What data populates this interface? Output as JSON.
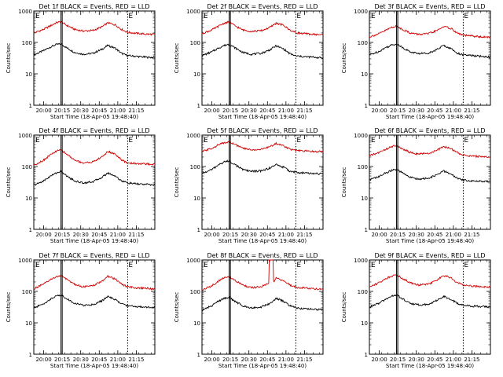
{
  "figure": {
    "background": "#ffffff",
    "axis_color": "#000000",
    "events_color": "#000000",
    "lld_color": "#d00000"
  },
  "chart_data": [
    {
      "type": "line",
      "title": "Det 1f BLACK = Events, RED = LLD",
      "ylabel": "Counts/sec",
      "xlabel": "Start Time (18-Apr-05 19:48:40)",
      "yscale": "log",
      "ylim": [
        1,
        1000
      ],
      "ytick_labels": [
        "1",
        "10",
        "100",
        "1000"
      ],
      "xlim_minutes": [
        -8,
        90
      ],
      "xtick_labels": [
        "20:00",
        "20:15",
        "20:30",
        "20:45",
        "21:00",
        "21:15"
      ],
      "xtick_minutes": [
        0,
        15,
        30,
        45,
        60,
        75
      ],
      "solid_markers_minutes": [
        14,
        15
      ],
      "dotted_markers_minutes": [
        68
      ],
      "marker_labels": [
        "E",
        "E"
      ],
      "series": [
        {
          "name": "Events",
          "x": [
            -8,
            0,
            5,
            10,
            14,
            18,
            25,
            32,
            40,
            47,
            52,
            58,
            63,
            68,
            75,
            82,
            90
          ],
          "values": [
            40,
            55,
            70,
            85,
            90,
            70,
            48,
            42,
            45,
            60,
            80,
            65,
            45,
            38,
            36,
            34,
            33
          ]
        },
        {
          "name": "LLD",
          "x": [
            -8,
            0,
            5,
            10,
            14,
            18,
            25,
            32,
            40,
            47,
            52,
            58,
            63,
            68,
            75,
            82,
            90
          ],
          "values": [
            200,
            260,
            330,
            420,
            460,
            360,
            260,
            230,
            240,
            310,
            420,
            360,
            260,
            210,
            195,
            185,
            180
          ]
        }
      ]
    },
    {
      "type": "line",
      "title": "Det 2f BLACK = Events, RED = LLD",
      "ylabel": "Counts/sec",
      "xlabel": "Start Time (18-Apr-05 19:48:40)",
      "yscale": "log",
      "ylim": [
        1,
        1000
      ],
      "ytick_labels": [
        "1",
        "10",
        "100",
        "1000"
      ],
      "xlim_minutes": [
        -8,
        90
      ],
      "xtick_labels": [
        "20:00",
        "20:15",
        "20:30",
        "20:45",
        "21:00",
        "21:15"
      ],
      "xtick_minutes": [
        0,
        15,
        30,
        45,
        60,
        75
      ],
      "solid_markers_minutes": [
        14,
        15
      ],
      "dotted_markers_minutes": [
        68
      ],
      "marker_labels": [
        "E",
        "E"
      ],
      "series": [
        {
          "name": "Events",
          "x": [
            -8,
            0,
            5,
            10,
            14,
            18,
            25,
            32,
            40,
            47,
            52,
            58,
            63,
            68,
            75,
            82,
            90
          ],
          "values": [
            38,
            50,
            65,
            80,
            88,
            70,
            48,
            42,
            45,
            58,
            78,
            62,
            44,
            37,
            35,
            34,
            32
          ]
        },
        {
          "name": "LLD",
          "x": [
            -8,
            0,
            5,
            10,
            14,
            18,
            25,
            32,
            40,
            47,
            52,
            58,
            63,
            68,
            75,
            82,
            90
          ],
          "values": [
            190,
            250,
            320,
            410,
            450,
            350,
            250,
            225,
            235,
            300,
            410,
            350,
            250,
            205,
            190,
            180,
            175
          ]
        }
      ]
    },
    {
      "type": "line",
      "title": "Det 3f BLACK = Events, RED = LLD",
      "ylabel": "Counts/sec",
      "xlabel": "Start Time (18-Apr-05 19:48:40)",
      "yscale": "log",
      "ylim": [
        1,
        1000
      ],
      "ytick_labels": [
        "1",
        "10",
        "100",
        "1000"
      ],
      "xlim_minutes": [
        -8,
        90
      ],
      "xtick_labels": [
        "20:00",
        "20:15",
        "20:30",
        "20:45",
        "21:00",
        "21:15"
      ],
      "xtick_minutes": [
        0,
        15,
        30,
        45,
        60,
        75
      ],
      "solid_markers_minutes": [
        14,
        15
      ],
      "dotted_markers_minutes": [
        68
      ],
      "marker_labels": [
        "E",
        "E"
      ],
      "series": [
        {
          "name": "Events",
          "x": [
            -8,
            0,
            5,
            10,
            14,
            18,
            25,
            32,
            40,
            47,
            52,
            58,
            63,
            68,
            75,
            82,
            90
          ],
          "values": [
            40,
            52,
            68,
            82,
            90,
            72,
            50,
            44,
            46,
            60,
            80,
            64,
            46,
            40,
            38,
            36,
            34
          ]
        },
        {
          "name": "LLD",
          "x": [
            -8,
            0,
            5,
            10,
            14,
            18,
            25,
            32,
            40,
            47,
            52,
            58,
            63,
            68,
            75,
            82,
            90
          ],
          "values": [
            150,
            190,
            240,
            300,
            330,
            270,
            200,
            180,
            190,
            240,
            320,
            280,
            200,
            170,
            160,
            150,
            145
          ]
        }
      ]
    },
    {
      "type": "line",
      "title": "Det 4f BLACK = Events, RED = LLD",
      "ylabel": "Counts/sec",
      "xlabel": "Start Time (18-Apr-05 19:48:40)",
      "yscale": "log",
      "ylim": [
        1,
        1000
      ],
      "ytick_labels": [
        "1",
        "10",
        "100",
        "1000"
      ],
      "xlim_minutes": [
        -8,
        90
      ],
      "xtick_labels": [
        "20:00",
        "20:15",
        "20:30",
        "20:45",
        "21:00",
        "21:15"
      ],
      "xtick_minutes": [
        0,
        15,
        30,
        45,
        60,
        75
      ],
      "solid_markers_minutes": [
        14,
        15
      ],
      "dotted_markers_minutes": [
        68
      ],
      "marker_labels": [
        "E",
        "E"
      ],
      "series": [
        {
          "name": "Events",
          "x": [
            -8,
            0,
            5,
            10,
            14,
            18,
            25,
            32,
            40,
            47,
            52,
            58,
            63,
            68,
            75,
            82,
            90
          ],
          "values": [
            25,
            35,
            48,
            62,
            70,
            52,
            35,
            30,
            33,
            45,
            62,
            50,
            35,
            30,
            28,
            27,
            26
          ]
        },
        {
          "name": "LLD",
          "x": [
            -8,
            0,
            5,
            10,
            14,
            18,
            25,
            32,
            40,
            47,
            52,
            58,
            63,
            68,
            75,
            82,
            90
          ],
          "values": [
            110,
            160,
            230,
            300,
            340,
            260,
            160,
            130,
            140,
            200,
            300,
            250,
            160,
            130,
            125,
            120,
            118
          ]
        }
      ]
    },
    {
      "type": "line",
      "title": "Det 5f BLACK = Events, RED = LLD",
      "ylabel": "Counts/sec",
      "xlabel": "Start Time (18-Apr-05 19:48:40)",
      "yscale": "log",
      "ylim": [
        1,
        1000
      ],
      "ytick_labels": [
        "1",
        "10",
        "100",
        "1000"
      ],
      "xlim_minutes": [
        -8,
        90
      ],
      "xtick_labels": [
        "20:00",
        "20:15",
        "20:30",
        "20:45",
        "21:00",
        "21:15"
      ],
      "xtick_minutes": [
        0,
        15,
        30,
        45,
        60,
        75
      ],
      "solid_markers_minutes": [
        14,
        15
      ],
      "dotted_markers_minutes": [
        68
      ],
      "marker_labels": [
        "E",
        "E"
      ],
      "series": [
        {
          "name": "Events",
          "x": [
            -8,
            0,
            5,
            10,
            14,
            18,
            25,
            32,
            40,
            47,
            52,
            58,
            63,
            68,
            75,
            82,
            90
          ],
          "values": [
            60,
            80,
            110,
            140,
            150,
            120,
            80,
            70,
            72,
            90,
            115,
            95,
            72,
            65,
            62,
            60,
            58
          ]
        },
        {
          "name": "LLD",
          "x": [
            -8,
            0,
            5,
            10,
            14,
            18,
            25,
            32,
            40,
            47,
            52,
            58,
            63,
            68,
            75,
            82,
            90
          ],
          "values": [
            300,
            380,
            480,
            580,
            620,
            520,
            380,
            340,
            350,
            430,
            540,
            460,
            360,
            320,
            310,
            300,
            295
          ]
        }
      ]
    },
    {
      "type": "line",
      "title": "Det 6f BLACK = Events, RED = LLD",
      "ylabel": "Counts/sec",
      "xlabel": "Start Time (18-Apr-05 19:48:40)",
      "yscale": "log",
      "ylim": [
        1,
        1000
      ],
      "ytick_labels": [
        "1",
        "10",
        "100",
        "1000"
      ],
      "xlim_minutes": [
        -8,
        90
      ],
      "xtick_labels": [
        "20:00",
        "20:15",
        "20:30",
        "20:45",
        "21:00",
        "21:15"
      ],
      "xtick_minutes": [
        0,
        15,
        30,
        45,
        60,
        75
      ],
      "solid_markers_minutes": [
        14,
        15
      ],
      "dotted_markers_minutes": [
        68
      ],
      "marker_labels": [
        "E",
        "E"
      ],
      "series": [
        {
          "name": "Events",
          "x": [
            -8,
            0,
            5,
            10,
            14,
            18,
            25,
            32,
            40,
            47,
            52,
            58,
            63,
            68,
            75,
            82,
            90
          ],
          "values": [
            38,
            48,
            62,
            75,
            80,
            65,
            45,
            40,
            42,
            55,
            72,
            58,
            42,
            37,
            35,
            34,
            33
          ]
        },
        {
          "name": "LLD",
          "x": [
            -8,
            0,
            5,
            10,
            14,
            18,
            25,
            32,
            40,
            47,
            52,
            58,
            63,
            68,
            75,
            82,
            90
          ],
          "values": [
            220,
            280,
            350,
            430,
            460,
            380,
            280,
            250,
            260,
            330,
            430,
            370,
            280,
            230,
            215,
            205,
            200
          ]
        }
      ]
    },
    {
      "type": "line",
      "title": "Det 7f BLACK = Events, RED = LLD",
      "ylabel": "Counts/sec",
      "xlabel": "Start Time (18-Apr-05 19:48:40)",
      "yscale": "log",
      "ylim": [
        1,
        1000
      ],
      "ytick_labels": [
        "1",
        "10",
        "100",
        "1000"
      ],
      "xlim_minutes": [
        -8,
        90
      ],
      "xtick_labels": [
        "20:00",
        "20:15",
        "20:30",
        "20:45",
        "21:00",
        "21:15"
      ],
      "xtick_minutes": [
        0,
        15,
        30,
        45,
        60,
        75
      ],
      "solid_markers_minutes": [
        14,
        15
      ],
      "dotted_markers_minutes": [
        68
      ],
      "marker_labels": [
        "E",
        "E"
      ],
      "series": [
        {
          "name": "Events",
          "x": [
            -8,
            0,
            5,
            10,
            14,
            18,
            25,
            32,
            40,
            47,
            52,
            58,
            63,
            68,
            75,
            82,
            90
          ],
          "values": [
            30,
            40,
            55,
            70,
            78,
            60,
            42,
            36,
            38,
            50,
            68,
            55,
            40,
            35,
            33,
            32,
            31
          ]
        },
        {
          "name": "LLD",
          "x": [
            -8,
            0,
            5,
            10,
            14,
            18,
            25,
            32,
            40,
            47,
            52,
            58,
            63,
            68,
            75,
            82,
            90
          ],
          "values": [
            120,
            170,
            230,
            290,
            320,
            250,
            170,
            140,
            150,
            210,
            300,
            250,
            170,
            140,
            130,
            125,
            120
          ]
        }
      ]
    },
    {
      "type": "line",
      "title": "Det 8f BLACK = Events, RED = LLD",
      "ylabel": "Counts/sec",
      "xlabel": "Start Time (18-Apr-05 19:48:40)",
      "yscale": "log",
      "ylim": [
        1,
        1000
      ],
      "ytick_labels": [
        "1",
        "10",
        "100",
        "1000"
      ],
      "xlim_minutes": [
        -8,
        90
      ],
      "xtick_labels": [
        "20:00",
        "20:15",
        "20:30",
        "20:45",
        "21:00",
        "21:15"
      ],
      "xtick_minutes": [
        0,
        15,
        30,
        45,
        60,
        75
      ],
      "solid_markers_minutes": [
        14,
        15
      ],
      "dotted_markers_minutes": [
        68
      ],
      "marker_labels": [
        "E",
        "E"
      ],
      "series": [
        {
          "name": "Events",
          "x": [
            -8,
            0,
            5,
            10,
            14,
            18,
            25,
            32,
            40,
            46,
            50,
            52,
            58,
            63,
            68,
            75,
            82,
            90
          ],
          "values": [
            25,
            35,
            48,
            60,
            65,
            50,
            35,
            30,
            32,
            40,
            50,
            60,
            48,
            35,
            30,
            28,
            27,
            26
          ]
        },
        {
          "name": "LLD",
          "x": [
            -8,
            0,
            5,
            10,
            14,
            18,
            25,
            32,
            40,
            46,
            46.5,
            49.5,
            50,
            52,
            58,
            63,
            68,
            75,
            82,
            90
          ],
          "values": [
            110,
            150,
            210,
            270,
            300,
            230,
            160,
            130,
            140,
            180,
            1000,
            1000,
            200,
            260,
            220,
            160,
            135,
            128,
            122,
            118
          ]
        }
      ]
    },
    {
      "type": "line",
      "title": "Det 9f BLACK = Events, RED = LLD",
      "ylabel": "Counts/sec",
      "xlabel": "Start Time (18-Apr-05 19:48:40)",
      "yscale": "log",
      "ylim": [
        1,
        1000
      ],
      "ytick_labels": [
        "1",
        "10",
        "100",
        "1000"
      ],
      "xlim_minutes": [
        -8,
        90
      ],
      "xtick_labels": [
        "20:00",
        "20:15",
        "20:30",
        "20:45",
        "21:00",
        "21:15"
      ],
      "xtick_minutes": [
        0,
        15,
        30,
        45,
        60,
        75
      ],
      "solid_markers_minutes": [
        14,
        15
      ],
      "dotted_markers_minutes": [
        68
      ],
      "marker_labels": [
        "E",
        "E"
      ],
      "series": [
        {
          "name": "Events",
          "x": [
            -8,
            0,
            5,
            10,
            14,
            18,
            25,
            32,
            40,
            47,
            52,
            58,
            63,
            68,
            75,
            82,
            90
          ],
          "values": [
            32,
            42,
            56,
            70,
            78,
            60,
            42,
            37,
            39,
            52,
            70,
            56,
            42,
            36,
            34,
            33,
            32
          ]
        },
        {
          "name": "LLD",
          "x": [
            -8,
            0,
            5,
            10,
            14,
            18,
            25,
            32,
            40,
            47,
            52,
            58,
            63,
            68,
            75,
            82,
            90
          ],
          "values": [
            140,
            190,
            250,
            310,
            340,
            270,
            190,
            160,
            170,
            230,
            320,
            270,
            190,
            160,
            150,
            142,
            138
          ]
        }
      ]
    }
  ]
}
